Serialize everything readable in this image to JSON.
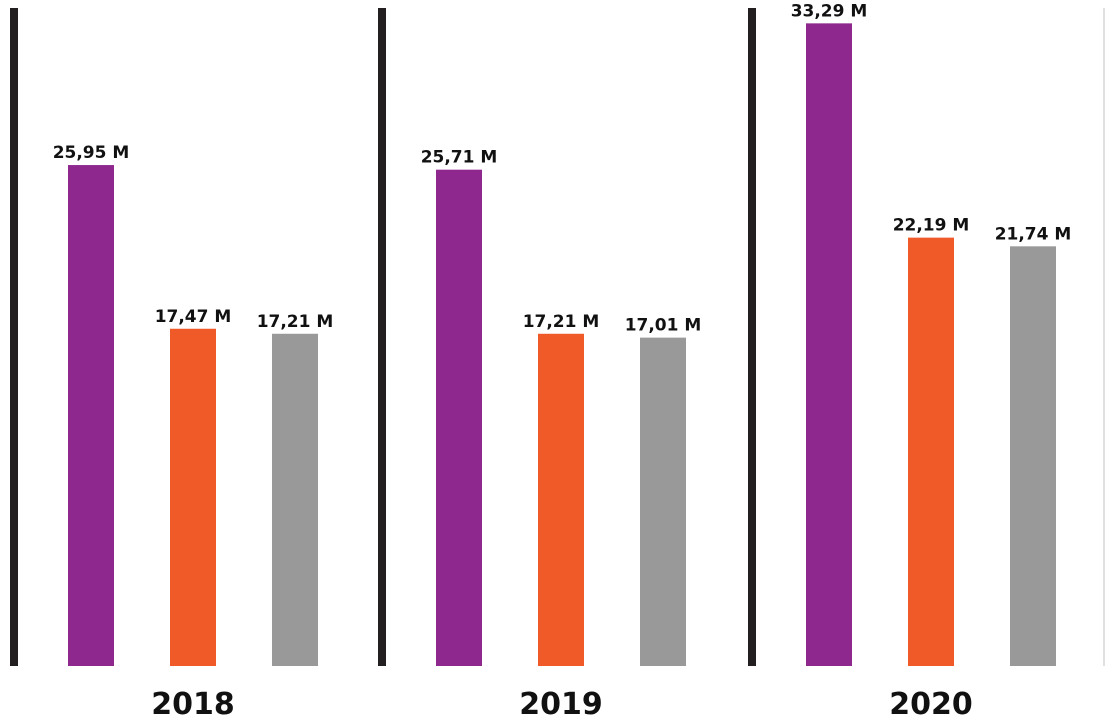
{
  "chart_data": {
    "type": "bar",
    "categories": [
      "2018",
      "2019",
      "2020"
    ],
    "series": [
      {
        "values": [
          25.95,
          25.71,
          33.29
        ],
        "labels": [
          "25,95 M",
          "25,71 M",
          "33,29 M"
        ],
        "color": "#8e278e"
      },
      {
        "values": [
          17.47,
          17.21,
          22.19
        ],
        "labels": [
          "17,47 M",
          "17,21 M",
          "22,19 M"
        ],
        "color": "#f05a28"
      },
      {
        "values": [
          17.21,
          17.01,
          21.74
        ],
        "labels": [
          "17,21 M",
          "17,01 M",
          "21,74 M"
        ],
        "color": "#999999"
      }
    ],
    "title": "",
    "xlabel": "",
    "ylabel": "",
    "ylim": [
      0,
      34.5
    ],
    "grid": false,
    "legend": "none",
    "separator_color": "#231f20"
  }
}
